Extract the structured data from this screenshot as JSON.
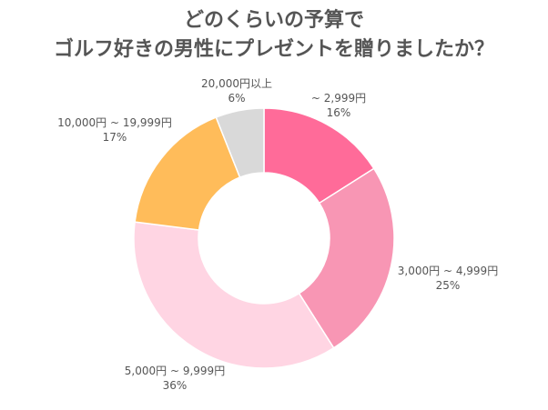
{
  "chart_data": {
    "type": "donut",
    "title_line1": "どのくらいの予算で",
    "title_line2": "ゴルフ好きの男性にプレゼントを贈りましたか？",
    "series": [
      {
        "label": "~ 2,999円",
        "value": 16,
        "pct_label": "16%",
        "color": "#FF6B99"
      },
      {
        "label": "3,000円 ~ 4,999円",
        "value": 25,
        "pct_label": "25%",
        "color": "#F896B4"
      },
      {
        "label": "5,000円 ~ 9,999円",
        "value": 36,
        "pct_label": "36%",
        "color": "#FFD5E3"
      },
      {
        "label": "10,000円 ~ 19,999円",
        "value": 17,
        "pct_label": "17%",
        "color": "#FFBC5A"
      },
      {
        "label": "20,000円以上",
        "value": 6,
        "pct_label": "6%",
        "color": "#D9D9D9"
      }
    ]
  }
}
